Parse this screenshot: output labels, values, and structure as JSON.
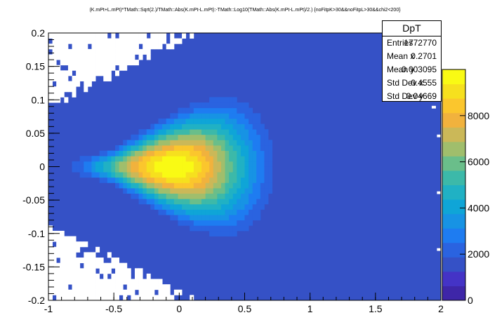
{
  "title": "(K.mPt+L.mPt)*TMath::Sqrt(2.)/TMath::Abs(K.mPt-L.mPt):-TMath::Log10(TMath::Abs(K.mPt-L.mPt)/2.) {noFitpK>30&&noFitpL>30&&chi2<200}",
  "stats": {
    "name": "DpT",
    "rows": [
      {
        "label": "Entries",
        "value": "1772770"
      },
      {
        "label": "Mean x",
        "value": "0.2701"
      },
      {
        "label": "Mean y",
        "value": "0.003095"
      },
      {
        "label": "Std Dev x",
        "value": "0.4555"
      },
      {
        "label": "Std Dev y",
        "value": "0.04669"
      }
    ]
  },
  "colors": {
    "background_bin": "#3551c6",
    "frame": "#000000",
    "palette": [
      "#3e26a8",
      "#4433c6",
      "#3551c6",
      "#2a63e0",
      "#1e7cf1",
      "#1793e4",
      "#0fa5d7",
      "#20b1c4",
      "#3cb9a9",
      "#6abe8a",
      "#a0be6c",
      "#cbb858",
      "#f1b23d",
      "#fbc62d",
      "#f6e01e",
      "#f9fa14"
    ]
  },
  "chart_data": {
    "type": "heatmap",
    "title": "(K.mPt+L.mPt)*TMath::Sqrt(2.)/TMath::Abs(K.mPt-L.mPt):-TMath::Log10(TMath::Abs(K.mPt-L.mPt)/2.) {noFitpK>30&&noFitpL>30&&chi2<200}",
    "xlabel": "",
    "ylabel": "",
    "xlim": [
      -1,
      2
    ],
    "ylim": [
      -0.2,
      0.2
    ],
    "zlim": [
      0,
      10000
    ],
    "x_ticks": [
      "-1",
      "-0.5",
      "0",
      "0.5",
      "1",
      "1.5",
      "2"
    ],
    "y_ticks": [
      "-0.2",
      "-0.15",
      "-0.1",
      "-0.05",
      "0",
      "0.05",
      "0.1",
      "0.15",
      "0.2"
    ],
    "z_ticks": [
      "0",
      "2000",
      "4000",
      "6000",
      "8000"
    ],
    "z_tick_values": [
      0,
      2000,
      4000,
      6000,
      8000
    ],
    "peak": {
      "x": -0.05,
      "y": 0.0,
      "z": 10000
    },
    "grid": false,
    "legend": "top-right"
  }
}
